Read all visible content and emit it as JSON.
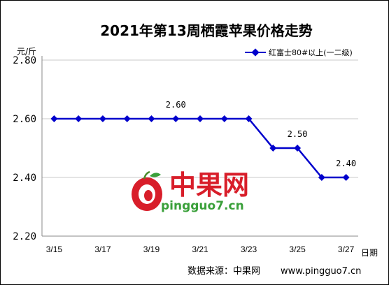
{
  "chart_data": {
    "type": "line",
    "title": "2021年第13周栖霞苹果价格走势",
    "ylabel": "元/斤",
    "xlabel": "日期",
    "ylim": [
      2.2,
      2.8
    ],
    "yticks": [
      "2.80",
      "2.60",
      "2.40",
      "2.20"
    ],
    "x": [
      "3/15",
      "3/16",
      "3/17",
      "3/18",
      "3/19",
      "3/20",
      "3/21",
      "3/22",
      "3/23",
      "3/24",
      "3/25",
      "3/26",
      "3/27"
    ],
    "x_tick_labels": [
      "3/15",
      "3/17",
      "3/19",
      "3/21",
      "3/23",
      "3/25",
      "3/27"
    ],
    "series": [
      {
        "name": "红富士80#以上(一二级)",
        "color": "#0000cc",
        "values": [
          2.6,
          2.6,
          2.6,
          2.6,
          2.6,
          2.6,
          2.6,
          2.6,
          2.6,
          2.5,
          2.5,
          2.4,
          2.4
        ]
      }
    ],
    "data_labels": [
      {
        "x": "3/20",
        "text": "2.60"
      },
      {
        "x": "3/25",
        "text": "2.50"
      },
      {
        "x": "3/27",
        "text": "2.40"
      }
    ],
    "grid": true,
    "legend_position": "top-right"
  },
  "watermark": {
    "brand": "中果网",
    "url": "pingguo7.cn"
  },
  "source": {
    "label": "数据来源：中果网",
    "url": "www.pingguo7.cn"
  }
}
